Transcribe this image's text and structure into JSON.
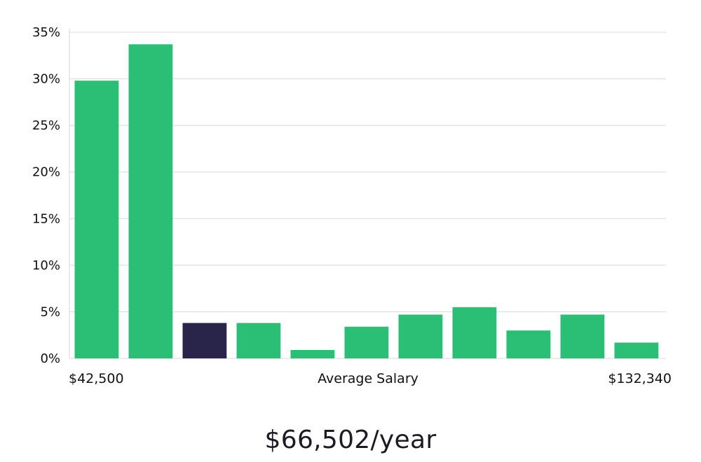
{
  "chart_data": {
    "type": "bar",
    "xlabel": "Average Salary",
    "x_min_label": "$42,500",
    "x_max_label": "$132,340",
    "ylim": [
      0,
      35
    ],
    "yticks": [
      "0%",
      "5%",
      "10%",
      "15%",
      "20%",
      "25%",
      "30%",
      "35%"
    ],
    "values": [
      29.8,
      33.7,
      3.8,
      3.8,
      0.9,
      3.4,
      4.7,
      5.5,
      3.0,
      4.7,
      1.7
    ],
    "highlight_index": 2,
    "colors": {
      "bar": "#2bbf76",
      "highlight": "#29254a",
      "grid": "#d8d8d8"
    },
    "grid": true
  },
  "summary": "$66,502/year"
}
